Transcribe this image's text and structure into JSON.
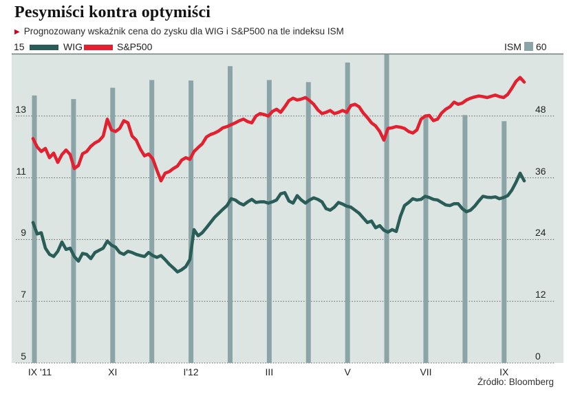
{
  "header": {
    "title": "Pesymiści kontra optymiści",
    "subtitle": "Prognozowany wskaźnik cena do zysku dla WIG i S&P500 na tle indeksu ISM"
  },
  "source": "Źródło: Bloomberg",
  "colors": {
    "wig_line": "#2a5d58",
    "sp500_line": "#e2202f",
    "ism_bar": "#8ba4a8",
    "plot_background": "#dce5e2",
    "gridline": "#4a4a4a",
    "top_rule": "#6f7f7d",
    "accent_red_bullet": "#d6001c"
  },
  "chart_data": {
    "type": "line+bar",
    "title": "Prognozowany wskaźnik cena do zysku dla WIG i S&P500 na tle indeksu ISM",
    "left_axis": {
      "range": [
        5,
        15
      ],
      "ticks": [
        15,
        13,
        11,
        9,
        7,
        5
      ]
    },
    "right_axis": {
      "range": [
        0,
        60
      ],
      "ticks": [
        60,
        48,
        36,
        24,
        12,
        0
      ]
    },
    "x_axis": {
      "shown_tick_labels": [
        "IX '11",
        "XI",
        "I'12",
        "III",
        "V",
        "VII",
        "IX"
      ],
      "shown_tick_month_indices": [
        0,
        2,
        4,
        6,
        8,
        10,
        12
      ]
    },
    "ism": {
      "name": "ISM",
      "months": [
        "IX '11",
        "X",
        "XI",
        "XII",
        "I'12",
        "II",
        "III",
        "IV",
        "V",
        "VI",
        "VII",
        "VIII",
        "IX"
      ],
      "values": [
        52.0,
        51.3,
        53.5,
        55.0,
        54.9,
        57.7,
        55.0,
        54.6,
        58.4,
        60.0,
        48.2,
        48.2,
        47.0
      ]
    },
    "series": [
      {
        "name": "WIG",
        "axis": "left",
        "x_start_month": -0.035,
        "x_step_month": 0.10545,
        "values": [
          9.55,
          9.18,
          9.22,
          8.72,
          8.52,
          8.45,
          8.62,
          8.92,
          8.68,
          8.72,
          8.45,
          8.3,
          8.55,
          8.52,
          8.38,
          8.58,
          8.65,
          8.72,
          8.95,
          8.82,
          8.75,
          8.58,
          8.52,
          8.62,
          8.58,
          8.52,
          8.48,
          8.45,
          8.58,
          8.48,
          8.42,
          8.48,
          8.35,
          8.2,
          8.08,
          7.95,
          8.02,
          8.12,
          8.35,
          9.32,
          9.12,
          9.22,
          9.38,
          9.55,
          9.72,
          9.85,
          9.98,
          10.1,
          10.32,
          10.28,
          10.18,
          10.12,
          10.22,
          10.3,
          10.2,
          10.22,
          10.22,
          10.18,
          10.22,
          10.28,
          10.48,
          10.52,
          10.25,
          10.18,
          10.42,
          10.28,
          10.18,
          10.28,
          10.35,
          10.3,
          10.22,
          10.0,
          9.95,
          10.05,
          10.2,
          10.15,
          10.08,
          10.05,
          9.95,
          9.85,
          9.7,
          9.55,
          9.6,
          9.38,
          9.45,
          9.3,
          9.24,
          9.32,
          9.26,
          9.75,
          10.1,
          10.2,
          10.32,
          10.28,
          10.3,
          10.4,
          10.36,
          10.3,
          10.28,
          10.2,
          10.12,
          10.1,
          10.16,
          10.16,
          10.0,
          9.9,
          9.95,
          10.08,
          10.25,
          10.4,
          10.37,
          10.36,
          10.38,
          10.32,
          10.36,
          10.42,
          10.6,
          10.85,
          11.15,
          10.9
        ]
      },
      {
        "name": "S&P500",
        "axis": "left",
        "x_start_month": -0.035,
        "x_step_month": 0.10545,
        "values": [
          12.27,
          12.0,
          11.85,
          11.95,
          11.65,
          11.8,
          11.5,
          11.75,
          11.9,
          11.75,
          11.3,
          11.4,
          11.78,
          11.85,
          12.02,
          12.13,
          12.2,
          12.35,
          12.9,
          12.55,
          12.5,
          12.6,
          12.85,
          12.78,
          12.35,
          12.22,
          11.93,
          11.71,
          11.77,
          11.62,
          11.25,
          10.9,
          11.15,
          11.2,
          11.3,
          11.38,
          11.57,
          11.65,
          11.6,
          11.85,
          11.98,
          12.1,
          12.32,
          12.4,
          12.45,
          12.52,
          12.62,
          12.66,
          12.72,
          12.78,
          12.85,
          12.9,
          12.82,
          12.78,
          13.0,
          13.08,
          13.05,
          13.0,
          13.15,
          13.22,
          13.12,
          13.3,
          13.5,
          13.58,
          13.52,
          13.55,
          13.6,
          13.5,
          13.38,
          13.2,
          13.08,
          13.12,
          13.18,
          13.08,
          13.12,
          13.18,
          13.12,
          13.34,
          13.38,
          13.3,
          13.1,
          12.95,
          12.78,
          12.68,
          12.5,
          12.22,
          12.6,
          12.62,
          12.66,
          12.64,
          12.6,
          12.5,
          12.45,
          12.55,
          12.9,
          13.0,
          13.02,
          12.85,
          12.9,
          13.1,
          13.22,
          13.3,
          13.45,
          13.38,
          13.42,
          13.52,
          13.58,
          13.62,
          13.65,
          13.63,
          13.6,
          13.64,
          13.68,
          13.63,
          13.6,
          13.7,
          13.9,
          14.12,
          14.25,
          14.1
        ]
      }
    ]
  }
}
